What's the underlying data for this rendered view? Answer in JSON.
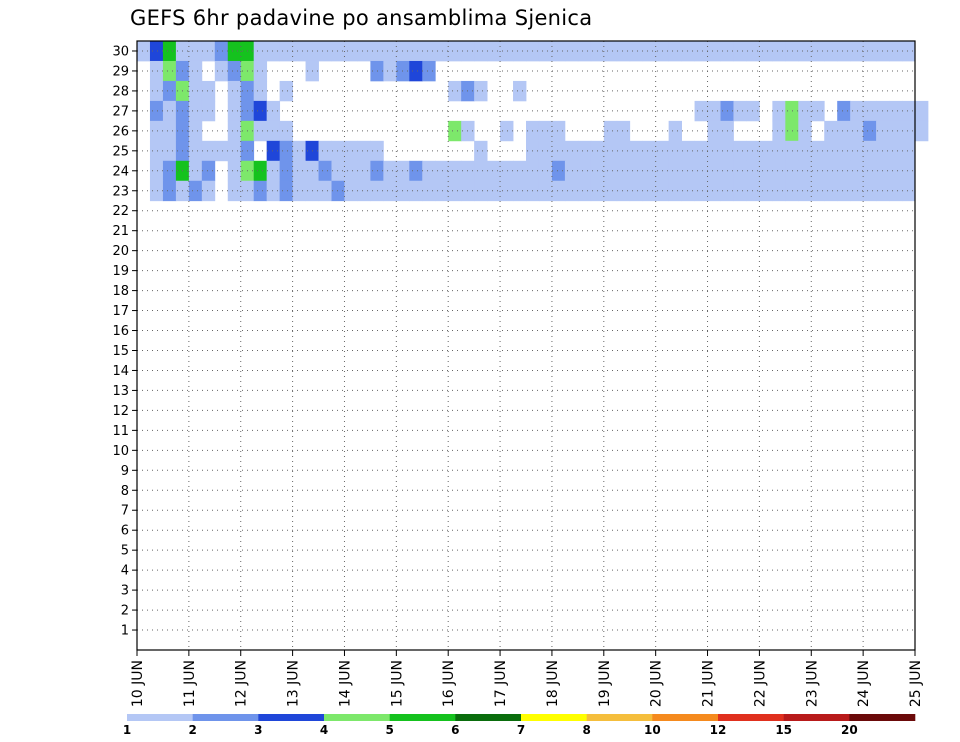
{
  "chart_data": {
    "type": "heatmap",
    "title": "GEFS 6hr padavine po ansamblima Sjenica",
    "xlabel": "",
    "ylabel": "",
    "y_ticks": [
      1,
      2,
      3,
      4,
      5,
      6,
      7,
      8,
      9,
      10,
      11,
      12,
      13,
      14,
      15,
      16,
      17,
      18,
      19,
      20,
      21,
      22,
      23,
      24,
      25,
      26,
      27,
      28,
      29,
      30
    ],
    "ylim": [
      0,
      30
    ],
    "x_ticks": [
      "10 JUN",
      "11 JUN",
      "12 JUN",
      "13 JUN",
      "14 JUN",
      "15 JUN",
      "16 JUN",
      "17 JUN",
      "18 JUN",
      "19 JUN",
      "20 JUN",
      "21 JUN",
      "22 JUN",
      "23 JUN",
      "24 JUN",
      "25 JUN"
    ],
    "xlim": [
      "10 JUN",
      "25 JUN"
    ],
    "x_step": "6hr",
    "grid": "dotted",
    "colorbar": {
      "placement": "bottom",
      "levels": [
        1,
        2,
        3,
        4,
        5,
        6,
        7,
        8,
        10,
        12,
        15,
        20
      ],
      "colors": [
        "#b4c7f5",
        "#6f94eb",
        "#1f46d9",
        "#7de86b",
        "#15c21e",
        "#0a6d0d",
        "#ffff00",
        "#f5be3c",
        "#f58a1e",
        "#e0301e",
        "#b81a1a",
        "#6b0a0a"
      ]
    },
    "cells": [
      [
        0,
        30,
        1
      ],
      [
        1,
        30,
        3
      ],
      [
        2,
        30,
        5
      ],
      [
        3,
        30,
        1
      ],
      [
        4,
        30,
        1
      ],
      [
        5,
        30,
        1
      ],
      [
        6,
        30,
        2
      ],
      [
        7,
        30,
        5
      ],
      [
        8,
        30,
        5
      ],
      [
        9,
        30,
        1
      ],
      [
        10,
        30,
        1
      ],
      [
        11,
        30,
        1
      ],
      [
        12,
        30,
        1
      ],
      [
        13,
        30,
        1
      ],
      [
        14,
        30,
        1
      ],
      [
        15,
        30,
        1
      ],
      [
        16,
        30,
        1
      ],
      [
        17,
        30,
        1
      ],
      [
        18,
        30,
        1
      ],
      [
        19,
        30,
        1
      ],
      [
        20,
        30,
        1
      ],
      [
        21,
        30,
        1
      ],
      [
        22,
        30,
        1
      ],
      [
        23,
        30,
        1
      ],
      [
        24,
        30,
        1
      ],
      [
        25,
        30,
        1
      ],
      [
        26,
        30,
        1
      ],
      [
        27,
        30,
        1
      ],
      [
        28,
        30,
        1
      ],
      [
        29,
        30,
        1
      ],
      [
        30,
        30,
        1
      ],
      [
        31,
        30,
        1
      ],
      [
        32,
        30,
        1
      ],
      [
        33,
        30,
        1
      ],
      [
        34,
        30,
        1
      ],
      [
        35,
        30,
        1
      ],
      [
        36,
        30,
        1
      ],
      [
        37,
        30,
        1
      ],
      [
        38,
        30,
        1
      ],
      [
        39,
        30,
        1
      ],
      [
        40,
        30,
        1
      ],
      [
        41,
        30,
        1
      ],
      [
        42,
        30,
        1
      ],
      [
        43,
        30,
        1
      ],
      [
        44,
        30,
        1
      ],
      [
        45,
        30,
        1
      ],
      [
        46,
        30,
        1
      ],
      [
        47,
        30,
        1
      ],
      [
        48,
        30,
        1
      ],
      [
        49,
        30,
        1
      ],
      [
        50,
        30,
        1
      ],
      [
        51,
        30,
        1
      ],
      [
        52,
        30,
        1
      ],
      [
        53,
        30,
        1
      ],
      [
        54,
        30,
        1
      ],
      [
        55,
        30,
        1
      ],
      [
        56,
        30,
        1
      ],
      [
        57,
        30,
        1
      ],
      [
        58,
        30,
        1
      ],
      [
        59,
        30,
        1
      ],
      [
        1,
        29,
        1
      ],
      [
        2,
        29,
        4
      ],
      [
        3,
        29,
        2
      ],
      [
        4,
        29,
        1
      ],
      [
        6,
        29,
        1
      ],
      [
        7,
        29,
        2
      ],
      [
        8,
        29,
        4
      ],
      [
        9,
        29,
        1
      ],
      [
        13,
        29,
        1
      ],
      [
        18,
        29,
        2
      ],
      [
        19,
        29,
        1
      ],
      [
        20,
        29,
        2
      ],
      [
        21,
        29,
        3
      ],
      [
        22,
        29,
        2
      ],
      [
        1,
        28,
        1
      ],
      [
        2,
        28,
        2
      ],
      [
        3,
        28,
        4
      ],
      [
        4,
        28,
        1
      ],
      [
        5,
        28,
        1
      ],
      [
        7,
        28,
        1
      ],
      [
        8,
        28,
        2
      ],
      [
        9,
        28,
        1
      ],
      [
        11,
        28,
        1
      ],
      [
        24,
        28,
        1
      ],
      [
        25,
        28,
        2
      ],
      [
        26,
        28,
        1
      ],
      [
        29,
        28,
        1
      ],
      [
        1,
        27,
        2
      ],
      [
        2,
        27,
        1
      ],
      [
        3,
        27,
        2
      ],
      [
        4,
        27,
        1
      ],
      [
        5,
        27,
        1
      ],
      [
        7,
        27,
        1
      ],
      [
        8,
        27,
        2
      ],
      [
        9,
        27,
        3
      ],
      [
        10,
        27,
        1
      ],
      [
        43,
        27,
        1
      ],
      [
        44,
        27,
        1
      ],
      [
        45,
        27,
        2
      ],
      [
        46,
        27,
        1
      ],
      [
        47,
        27,
        1
      ],
      [
        49,
        27,
        1
      ],
      [
        50,
        27,
        4
      ],
      [
        51,
        27,
        1
      ],
      [
        52,
        27,
        1
      ],
      [
        54,
        27,
        2
      ],
      [
        55,
        27,
        1
      ],
      [
        56,
        27,
        1
      ],
      [
        57,
        27,
        1
      ],
      [
        58,
        27,
        1
      ],
      [
        59,
        27,
        1
      ],
      [
        60,
        27,
        1
      ],
      [
        1,
        26,
        1
      ],
      [
        2,
        26,
        1
      ],
      [
        3,
        26,
        2
      ],
      [
        4,
        26,
        1
      ],
      [
        7,
        26,
        1
      ],
      [
        8,
        26,
        4
      ],
      [
        9,
        26,
        1
      ],
      [
        10,
        26,
        1
      ],
      [
        11,
        26,
        1
      ],
      [
        24,
        26,
        4
      ],
      [
        25,
        26,
        1
      ],
      [
        28,
        26,
        1
      ],
      [
        30,
        26,
        1
      ],
      [
        31,
        26,
        1
      ],
      [
        32,
        26,
        1
      ],
      [
        36,
        26,
        1
      ],
      [
        37,
        26,
        1
      ],
      [
        41,
        26,
        1
      ],
      [
        44,
        26,
        1
      ],
      [
        45,
        26,
        1
      ],
      [
        49,
        26,
        1
      ],
      [
        50,
        26,
        4
      ],
      [
        51,
        26,
        1
      ],
      [
        53,
        26,
        1
      ],
      [
        54,
        26,
        1
      ],
      [
        55,
        26,
        1
      ],
      [
        56,
        26,
        2
      ],
      [
        57,
        26,
        1
      ],
      [
        58,
        26,
        1
      ],
      [
        59,
        26,
        1
      ],
      [
        60,
        26,
        1
      ],
      [
        1,
        25,
        1
      ],
      [
        2,
        25,
        1
      ],
      [
        3,
        25,
        2
      ],
      [
        4,
        25,
        1
      ],
      [
        5,
        25,
        1
      ],
      [
        6,
        25,
        1
      ],
      [
        7,
        25,
        1
      ],
      [
        8,
        25,
        2
      ],
      [
        10,
        25,
        3
      ],
      [
        11,
        25,
        2
      ],
      [
        12,
        25,
        1
      ],
      [
        13,
        25,
        3
      ],
      [
        14,
        25,
        1
      ],
      [
        15,
        25,
        1
      ],
      [
        16,
        25,
        1
      ],
      [
        17,
        25,
        1
      ],
      [
        18,
        25,
        1
      ],
      [
        26,
        25,
        1
      ],
      [
        30,
        25,
        1
      ],
      [
        31,
        25,
        1
      ],
      [
        32,
        25,
        1
      ],
      [
        33,
        25,
        1
      ],
      [
        34,
        25,
        1
      ],
      [
        35,
        25,
        1
      ],
      [
        36,
        25,
        1
      ],
      [
        37,
        25,
        1
      ],
      [
        38,
        25,
        1
      ],
      [
        39,
        25,
        1
      ],
      [
        40,
        25,
        1
      ],
      [
        41,
        25,
        1
      ],
      [
        42,
        25,
        1
      ],
      [
        43,
        25,
        1
      ],
      [
        44,
        25,
        1
      ],
      [
        45,
        25,
        1
      ],
      [
        46,
        25,
        1
      ],
      [
        47,
        25,
        1
      ],
      [
        48,
        25,
        1
      ],
      [
        49,
        25,
        1
      ],
      [
        50,
        25,
        1
      ],
      [
        51,
        25,
        1
      ],
      [
        52,
        25,
        1
      ],
      [
        53,
        25,
        1
      ],
      [
        54,
        25,
        1
      ],
      [
        55,
        25,
        1
      ],
      [
        56,
        25,
        1
      ],
      [
        57,
        25,
        1
      ],
      [
        58,
        25,
        1
      ],
      [
        59,
        25,
        1
      ],
      [
        1,
        24,
        1
      ],
      [
        2,
        24,
        2
      ],
      [
        3,
        24,
        5
      ],
      [
        4,
        24,
        1
      ],
      [
        5,
        24,
        2
      ],
      [
        7,
        24,
        1
      ],
      [
        8,
        24,
        4
      ],
      [
        9,
        24,
        5
      ],
      [
        10,
        24,
        1
      ],
      [
        11,
        24,
        2
      ],
      [
        12,
        24,
        1
      ],
      [
        13,
        24,
        1
      ],
      [
        14,
        24,
        2
      ],
      [
        15,
        24,
        1
      ],
      [
        16,
        24,
        1
      ],
      [
        17,
        24,
        1
      ],
      [
        18,
        24,
        2
      ],
      [
        19,
        24,
        1
      ],
      [
        20,
        24,
        1
      ],
      [
        21,
        24,
        2
      ],
      [
        22,
        24,
        1
      ],
      [
        23,
        24,
        1
      ],
      [
        24,
        24,
        1
      ],
      [
        25,
        24,
        1
      ],
      [
        26,
        24,
        1
      ],
      [
        27,
        24,
        1
      ],
      [
        28,
        24,
        1
      ],
      [
        29,
        24,
        1
      ],
      [
        30,
        24,
        1
      ],
      [
        31,
        24,
        1
      ],
      [
        32,
        24,
        2
      ],
      [
        33,
        24,
        1
      ],
      [
        34,
        24,
        1
      ],
      [
        35,
        24,
        1
      ],
      [
        36,
        24,
        1
      ],
      [
        37,
        24,
        1
      ],
      [
        38,
        24,
        1
      ],
      [
        39,
        24,
        1
      ],
      [
        40,
        24,
        1
      ],
      [
        41,
        24,
        1
      ],
      [
        42,
        24,
        1
      ],
      [
        43,
        24,
        1
      ],
      [
        44,
        24,
        1
      ],
      [
        45,
        24,
        1
      ],
      [
        46,
        24,
        1
      ],
      [
        47,
        24,
        1
      ],
      [
        48,
        24,
        1
      ],
      [
        49,
        24,
        1
      ],
      [
        50,
        24,
        1
      ],
      [
        51,
        24,
        1
      ],
      [
        52,
        24,
        1
      ],
      [
        53,
        24,
        1
      ],
      [
        54,
        24,
        1
      ],
      [
        55,
        24,
        1
      ],
      [
        56,
        24,
        1
      ],
      [
        57,
        24,
        1
      ],
      [
        58,
        24,
        1
      ],
      [
        59,
        24,
        1
      ],
      [
        1,
        23,
        1
      ],
      [
        2,
        23,
        2
      ],
      [
        3,
        23,
        1
      ],
      [
        4,
        23,
        2
      ],
      [
        5,
        23,
        1
      ],
      [
        7,
        23,
        1
      ],
      [
        8,
        23,
        1
      ],
      [
        9,
        23,
        2
      ],
      [
        10,
        23,
        1
      ],
      [
        11,
        23,
        2
      ],
      [
        12,
        23,
        1
      ],
      [
        13,
        23,
        1
      ],
      [
        14,
        23,
        1
      ],
      [
        15,
        23,
        2
      ],
      [
        16,
        23,
        1
      ],
      [
        17,
        23,
        1
      ],
      [
        18,
        23,
        1
      ],
      [
        19,
        23,
        1
      ],
      [
        20,
        23,
        1
      ],
      [
        21,
        23,
        1
      ],
      [
        22,
        23,
        1
      ],
      [
        23,
        23,
        1
      ],
      [
        24,
        23,
        1
      ],
      [
        25,
        23,
        1
      ],
      [
        26,
        23,
        1
      ],
      [
        27,
        23,
        1
      ],
      [
        28,
        23,
        1
      ],
      [
        29,
        23,
        1
      ],
      [
        30,
        23,
        1
      ],
      [
        31,
        23,
        1
      ],
      [
        32,
        23,
        1
      ],
      [
        33,
        23,
        1
      ],
      [
        34,
        23,
        1
      ],
      [
        35,
        23,
        1
      ],
      [
        36,
        23,
        1
      ],
      [
        37,
        23,
        1
      ],
      [
        38,
        23,
        1
      ],
      [
        39,
        23,
        1
      ],
      [
        40,
        23,
        1
      ],
      [
        41,
        23,
        1
      ],
      [
        42,
        23,
        1
      ],
      [
        43,
        23,
        1
      ],
      [
        44,
        23,
        1
      ],
      [
        45,
        23,
        1
      ],
      [
        46,
        23,
        1
      ],
      [
        47,
        23,
        1
      ],
      [
        48,
        23,
        1
      ],
      [
        49,
        23,
        1
      ],
      [
        50,
        23,
        1
      ],
      [
        51,
        23,
        1
      ],
      [
        52,
        23,
        1
      ],
      [
        53,
        23,
        1
      ],
      [
        54,
        23,
        1
      ],
      [
        55,
        23,
        1
      ],
      [
        56,
        23,
        1
      ],
      [
        57,
        23,
        1
      ],
      [
        58,
        23,
        1
      ],
      [
        59,
        23,
        1
      ]
    ]
  }
}
